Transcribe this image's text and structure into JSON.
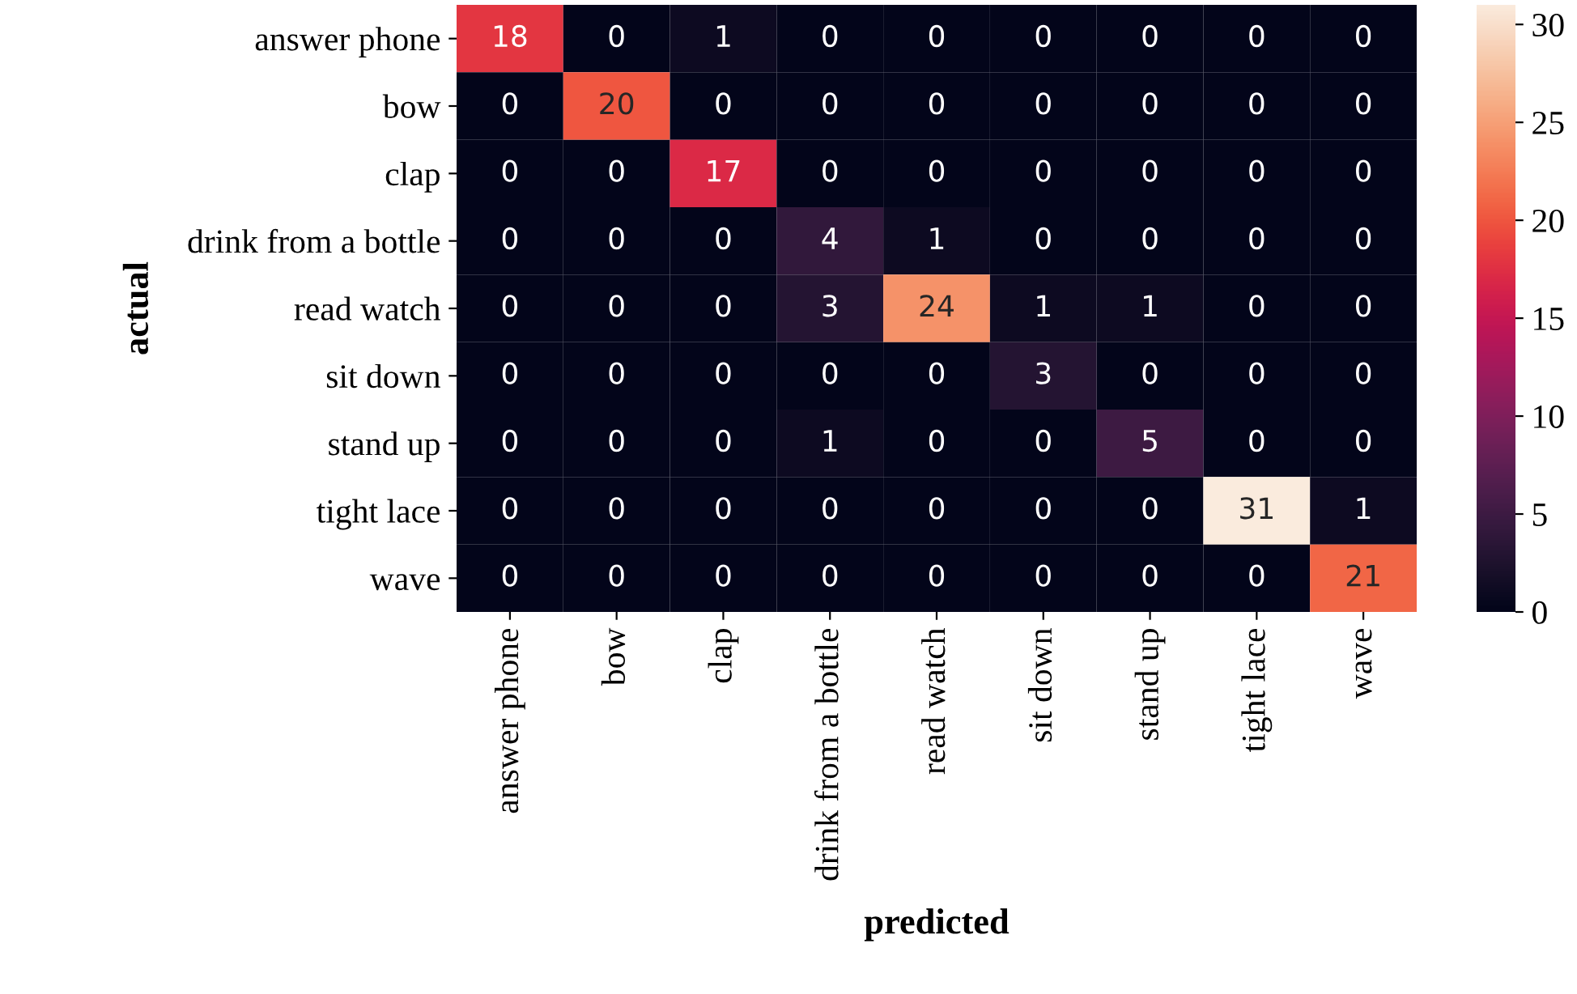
{
  "chart_data": {
    "type": "heatmap",
    "xlabel": "predicted",
    "ylabel": "actual",
    "categories": [
      "answer phone",
      "bow",
      "clap",
      "drink from a bottle",
      "read watch",
      "sit down",
      "stand up",
      "tight lace",
      "wave"
    ],
    "y_categories": [
      "answer phone",
      "bow",
      "clap",
      "drink from a bottle",
      "read watch",
      "sit down",
      "stand up",
      "tight lace",
      "wave"
    ],
    "cells": [
      [
        18,
        0,
        1,
        0,
        0,
        0,
        0,
        0,
        0
      ],
      [
        0,
        20,
        0,
        0,
        0,
        0,
        0,
        0,
        0
      ],
      [
        0,
        0,
        17,
        0,
        0,
        0,
        0,
        0,
        0
      ],
      [
        0,
        0,
        0,
        4,
        1,
        0,
        0,
        0,
        0
      ],
      [
        0,
        0,
        0,
        3,
        24,
        1,
        1,
        0,
        0
      ],
      [
        0,
        0,
        0,
        0,
        0,
        3,
        0,
        0,
        0
      ],
      [
        0,
        0,
        0,
        1,
        0,
        0,
        5,
        0,
        0
      ],
      [
        0,
        0,
        0,
        0,
        0,
        0,
        0,
        31,
        1
      ],
      [
        0,
        0,
        0,
        0,
        0,
        0,
        0,
        0,
        21
      ]
    ],
    "clim": [
      0,
      31
    ],
    "cticks": [
      0,
      5,
      10,
      15,
      20,
      25,
      30
    ],
    "data_labels": true
  }
}
